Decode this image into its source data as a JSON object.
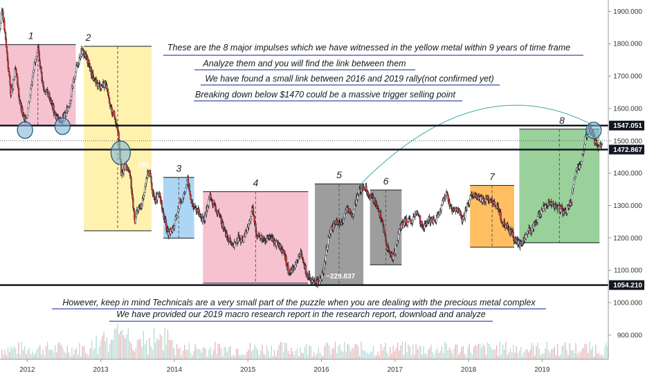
{
  "chart_data": {
    "type": "candlestick",
    "title": "",
    "xlabel": "",
    "ylabel": "",
    "x_tick_labels": [
      "2012",
      "2013",
      "2014",
      "2015",
      "2016",
      "2017",
      "2018",
      "2019"
    ],
    "x_ticks": [
      2012.0,
      2013.0,
      2014.0,
      2015.0,
      2016.0,
      2017.0,
      2018.0,
      2019.0
    ],
    "xlim": [
      2011.63,
      2019.9
    ],
    "y_ticks": [
      900,
      1000,
      1100,
      1200,
      1300,
      1400,
      1500,
      1600,
      1700,
      1800,
      1900
    ],
    "y_tick_labels": [
      "900.000",
      "1000.000",
      "1100.000",
      "1200.000",
      "1300.000",
      "1400.000",
      "1500.000",
      "1600.000",
      "1700.000",
      "1800.000",
      "1900.000"
    ],
    "ylim": [
      825,
      1935
    ],
    "grid": false,
    "price_series": [
      [
        2011.63,
        1850
      ],
      [
        2011.66,
        1910
      ],
      [
        2011.72,
        1780
      ],
      [
        2011.78,
        1640
      ],
      [
        2011.84,
        1720
      ],
      [
        2011.9,
        1620
      ],
      [
        2011.96,
        1560
      ],
      [
        2012.0,
        1580
      ],
      [
        2012.08,
        1720
      ],
      [
        2012.15,
        1780
      ],
      [
        2012.22,
        1660
      ],
      [
        2012.3,
        1640
      ],
      [
        2012.38,
        1580
      ],
      [
        2012.45,
        1560
      ],
      [
        2012.52,
        1580
      ],
      [
        2012.58,
        1620
      ],
      [
        2012.66,
        1720
      ],
      [
        2012.74,
        1780
      ],
      [
        2012.8,
        1760
      ],
      [
        2012.86,
        1720
      ],
      [
        2012.92,
        1680
      ],
      [
        2013.0,
        1670
      ],
      [
        2013.06,
        1680
      ],
      [
        2013.12,
        1610
      ],
      [
        2013.18,
        1580
      ],
      [
        2013.24,
        1530
      ],
      [
        2013.28,
        1390
      ],
      [
        2013.34,
        1430
      ],
      [
        2013.4,
        1390
      ],
      [
        2013.46,
        1250
      ],
      [
        2013.5,
        1290
      ],
      [
        2013.56,
        1300
      ],
      [
        2013.62,
        1390
      ],
      [
        2013.66,
        1410
      ],
      [
        2013.72,
        1320
      ],
      [
        2013.8,
        1330
      ],
      [
        2013.86,
        1260
      ],
      [
        2013.92,
        1210
      ],
      [
        2014.0,
        1240
      ],
      [
        2014.06,
        1300
      ],
      [
        2014.12,
        1330
      ],
      [
        2014.18,
        1380
      ],
      [
        2014.24,
        1300
      ],
      [
        2014.3,
        1290
      ],
      [
        2014.4,
        1250
      ],
      [
        2014.48,
        1330
      ],
      [
        2014.56,
        1290
      ],
      [
        2014.64,
        1250
      ],
      [
        2014.72,
        1200
      ],
      [
        2014.8,
        1170
      ],
      [
        2014.86,
        1200
      ],
      [
        2014.92,
        1190
      ],
      [
        2015.0,
        1230
      ],
      [
        2015.06,
        1290
      ],
      [
        2015.12,
        1210
      ],
      [
        2015.2,
        1200
      ],
      [
        2015.3,
        1200
      ],
      [
        2015.4,
        1180
      ],
      [
        2015.48,
        1160
      ],
      [
        2015.56,
        1090
      ],
      [
        2015.64,
        1120
      ],
      [
        2015.72,
        1150
      ],
      [
        2015.8,
        1090
      ],
      [
        2015.88,
        1060
      ],
      [
        2015.96,
        1060
      ],
      [
        2016.02,
        1090
      ],
      [
        2016.1,
        1210
      ],
      [
        2016.18,
        1250
      ],
      [
        2016.26,
        1240
      ],
      [
        2016.34,
        1290
      ],
      [
        2016.42,
        1270
      ],
      [
        2016.5,
        1340
      ],
      [
        2016.58,
        1360
      ],
      [
        2016.66,
        1330
      ],
      [
        2016.74,
        1310
      ],
      [
        2016.82,
        1260
      ],
      [
        2016.88,
        1180
      ],
      [
        2016.96,
        1140
      ],
      [
        2017.0,
        1160
      ],
      [
        2017.06,
        1230
      ],
      [
        2017.14,
        1250
      ],
      [
        2017.22,
        1250
      ],
      [
        2017.3,
        1280
      ],
      [
        2017.38,
        1230
      ],
      [
        2017.46,
        1260
      ],
      [
        2017.54,
        1250
      ],
      [
        2017.62,
        1290
      ],
      [
        2017.7,
        1340
      ],
      [
        2017.78,
        1280
      ],
      [
        2017.86,
        1290
      ],
      [
        2017.92,
        1250
      ],
      [
        2018.0,
        1310
      ],
      [
        2018.06,
        1340
      ],
      [
        2018.14,
        1320
      ],
      [
        2018.22,
        1320
      ],
      [
        2018.3,
        1320
      ],
      [
        2018.38,
        1300
      ],
      [
        2018.46,
        1250
      ],
      [
        2018.54,
        1230
      ],
      [
        2018.62,
        1200
      ],
      [
        2018.7,
        1180
      ],
      [
        2018.78,
        1210
      ],
      [
        2018.86,
        1230
      ],
      [
        2018.94,
        1260
      ],
      [
        2019.0,
        1290
      ],
      [
        2019.08,
        1310
      ],
      [
        2019.16,
        1300
      ],
      [
        2019.24,
        1290
      ],
      [
        2019.32,
        1280
      ],
      [
        2019.4,
        1320
      ],
      [
        2019.46,
        1410
      ],
      [
        2019.52,
        1420
      ],
      [
        2019.58,
        1500
      ],
      [
        2019.64,
        1540
      ],
      [
        2019.7,
        1510
      ],
      [
        2019.76,
        1480
      ],
      [
        2019.82,
        1500
      ]
    ],
    "volume_note": "",
    "horizontal_levels": [
      {
        "value": 1547.051,
        "label": "1547.051"
      },
      {
        "value": 1472.867,
        "label": "1472.867"
      },
      {
        "value": 1054.21,
        "label": "1054.210"
      }
    ],
    "dotted_level": 1500,
    "impulse_boxes": [
      {
        "label": "1",
        "x0": 2011.63,
        "x1": 2012.66,
        "y0": 1548,
        "y1": 1797,
        "color": "#f5b7c8"
      },
      {
        "label": "2",
        "x0": 2012.77,
        "x1": 2013.69,
        "y0": 1222,
        "y1": 1792,
        "color": "#fff0a0"
      },
      {
        "label": "3",
        "x0": 2013.85,
        "x1": 2014.27,
        "y0": 1199,
        "y1": 1387,
        "color": "#9ecff2"
      },
      {
        "label": "4",
        "x0": 2014.39,
        "x1": 2015.82,
        "y0": 1060,
        "y1": 1343,
        "color": "#f5b7c8"
      },
      {
        "label": "5",
        "x0": 2015.91,
        "x1": 2016.57,
        "y0": 1055,
        "y1": 1367,
        "color": "#8c8c8c"
      },
      {
        "label": "6",
        "x0": 2016.66,
        "x1": 2017.09,
        "y0": 1117,
        "y1": 1348,
        "color": "#8c8c8c"
      },
      {
        "label": "7",
        "x0": 2018.02,
        "x1": 2018.62,
        "y0": 1171,
        "y1": 1362,
        "color": "#ffb347"
      },
      {
        "label": "8",
        "x0": 2018.69,
        "x1": 2019.78,
        "y0": 1185,
        "y1": 1536,
        "color": "#88c98a"
      }
    ],
    "box_value_labels": [
      {
        "text": "185",
        "x": 2013.58,
        "y": 1420
      },
      {
        "text": "−229.837",
        "x": 2016.26,
        "y": 1075
      }
    ],
    "annotations": [
      "These are the 8 major impulses which we have witnessed in the yellow metal within 9 years of time frame",
      "Analyze them and you will find the link between them",
      "We have found a small link between 2016 and 2019 rally(not confirmed yet)",
      "Breaking down below $1470 could be a massive trigger selling point",
      "However, keep in mind Technicals are a very small part of the puzzle when you are dealing with the precious metal complex",
      "We have provided our 2019 macro research report in the research report, download and analyze"
    ],
    "circle_markers": [
      {
        "x": 2011.97,
        "y": 1533
      },
      {
        "x": 2012.48,
        "y": 1545
      },
      {
        "x": 2013.27,
        "y": 1463
      },
      {
        "x": 2019.7,
        "y": 1532
      }
    ],
    "colors": {
      "up": "#26a69a",
      "down": "#ef5350",
      "line": "#131722",
      "volume": "#d8b4b4",
      "arc": "#3fa7a0"
    }
  }
}
